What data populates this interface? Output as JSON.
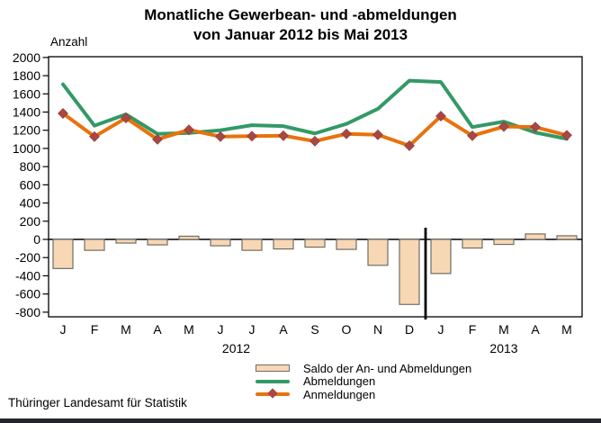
{
  "title": {
    "line1": "Monatliche Gewerbean- und -abmeldungen",
    "line2": "von Januar 2012 bis Mai 2013"
  },
  "y_axis_label": "Anzahl",
  "footer": "Thüringer Landesamt für Statistik",
  "legend": [
    {
      "label": "Saldo der An- und Abmeldungen",
      "swatch": "bar"
    },
    {
      "label": "Abmeldungen",
      "swatch": "line"
    },
    {
      "label": "Anmeldungen",
      "swatch": "line-with-diamond-marker"
    }
  ],
  "colors": {
    "saldo_fill": "#F8D7B4",
    "saldo_border": "#6E6E66",
    "abmeldungen_line": "#339966",
    "anmeldungen_line": "#E8720C",
    "marker_fill": "#A94743",
    "axis": "#000000",
    "text": "#000000"
  },
  "chart_data": {
    "type": "bar",
    "subtype": "bar-line-combo",
    "title": "Monatliche Gewerbean- und -abmeldungen von Januar 2012 bis Mai 2013",
    "ylabel": "Anzahl",
    "xlabel": "",
    "ylim": [
      -800,
      2000
    ],
    "ytick_step": 200,
    "grid": false,
    "legend_position": "bottom",
    "categories": [
      "J",
      "F",
      "M",
      "A",
      "M",
      "J",
      "J",
      "A",
      "S",
      "O",
      "N",
      "D",
      "J",
      "F",
      "M",
      "A",
      "M"
    ],
    "year_groups": [
      {
        "label": "2012",
        "from": 0,
        "to": 11
      },
      {
        "label": "2013",
        "from": 12,
        "to": 16
      }
    ],
    "separator_after_index": 11,
    "series": [
      {
        "name": "Saldo der An- und Abmeldungen",
        "type": "bar",
        "values": [
          -320,
          -120,
          -40,
          -60,
          35,
          -70,
          -120,
          -105,
          -85,
          -110,
          -285,
          -715,
          -375,
          -95,
          -55,
          60,
          40
        ]
      },
      {
        "name": "Abmeldungen",
        "type": "line",
        "values": [
          1705,
          1250,
          1375,
          1160,
          1170,
          1200,
          1255,
          1245,
          1165,
          1270,
          1435,
          1745,
          1730,
          1235,
          1295,
          1175,
          1105
        ]
      },
      {
        "name": "Anmeldungen",
        "type": "line",
        "marker": "diamond",
        "values": [
          1385,
          1130,
          1335,
          1100,
          1205,
          1130,
          1135,
          1140,
          1080,
          1160,
          1150,
          1030,
          1355,
          1140,
          1240,
          1235,
          1145
        ]
      }
    ]
  }
}
